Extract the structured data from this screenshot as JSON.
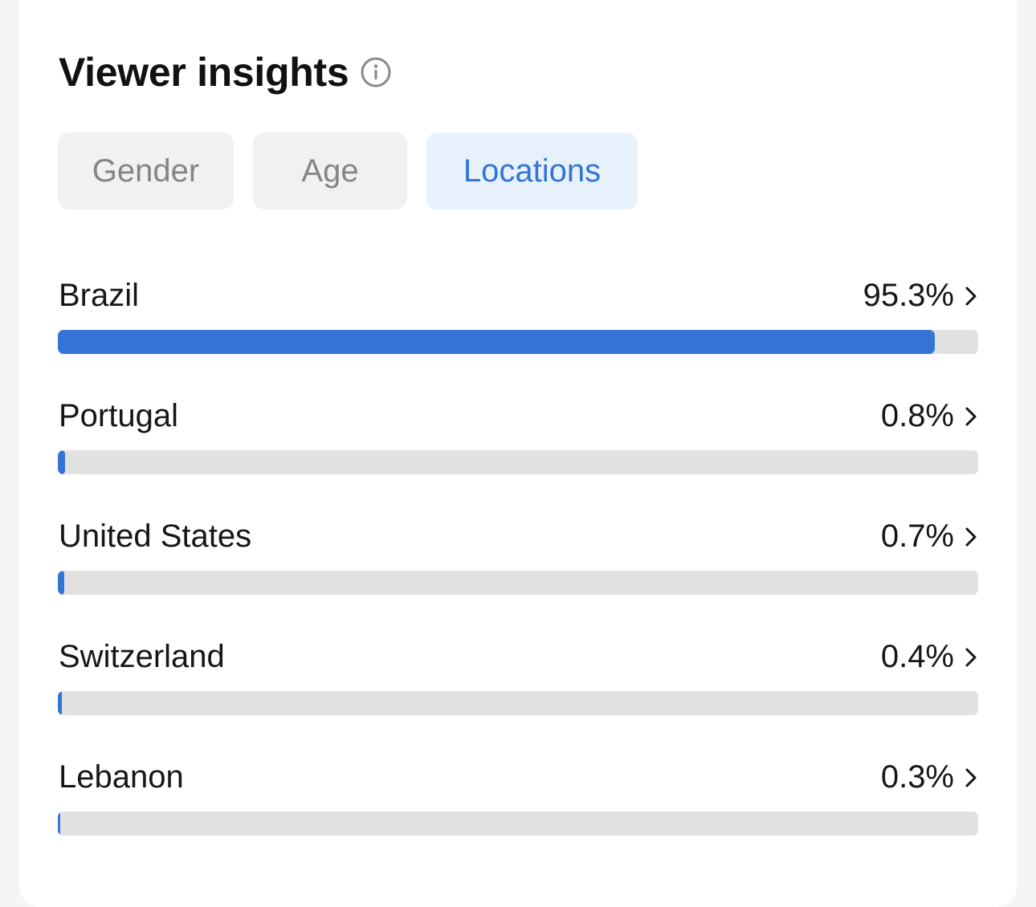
{
  "header": {
    "title": "Viewer insights",
    "info_icon": "info-circle-icon"
  },
  "tabs": [
    {
      "label": "Gender",
      "active": false
    },
    {
      "label": "Age",
      "active": false
    },
    {
      "label": "Locations",
      "active": true
    }
  ],
  "locations": [
    {
      "country": "Brazil",
      "percent_label": "95.3%",
      "percent": 95.3
    },
    {
      "country": "Portugal",
      "percent_label": "0.8%",
      "percent": 0.8
    },
    {
      "country": "United States",
      "percent_label": "0.7%",
      "percent": 0.7
    },
    {
      "country": "Switzerland",
      "percent_label": "0.4%",
      "percent": 0.4
    },
    {
      "country": "Lebanon",
      "percent_label": "0.3%",
      "percent": 0.3
    }
  ],
  "colors": {
    "accent": "#3374d5",
    "track": "#e1e1e1",
    "tab_inactive_bg": "#f1f1f1",
    "tab_active_bg": "#e7f1fb"
  }
}
